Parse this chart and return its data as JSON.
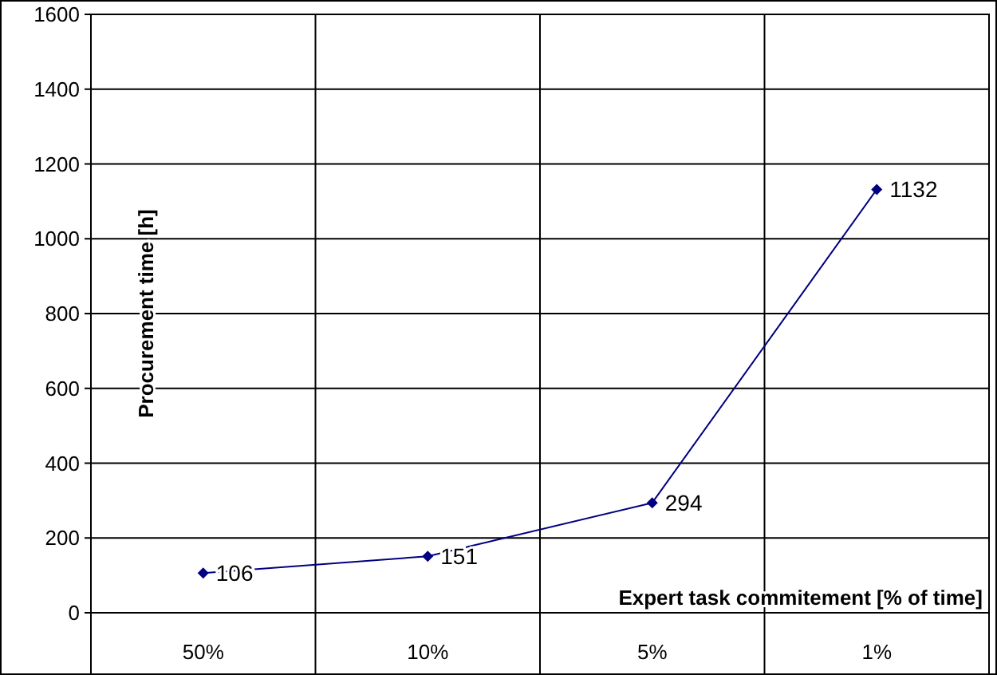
{
  "chart_data": {
    "type": "line",
    "xlabel": "Expert task commitement [% of time]",
    "ylabel": "Procurement time [h]",
    "categories": [
      "50%",
      "10%",
      "5%",
      "1%"
    ],
    "series": [
      {
        "color": "#000080",
        "values": [
          106,
          151,
          294,
          1132
        ]
      }
    ],
    "ylim": [
      0,
      1600
    ],
    "yticks": [
      0,
      200,
      400,
      600,
      800,
      1000,
      1200,
      1400,
      1600
    ],
    "grid": true,
    "marker": "diamond",
    "line_style": "solid",
    "data_labels": true
  }
}
